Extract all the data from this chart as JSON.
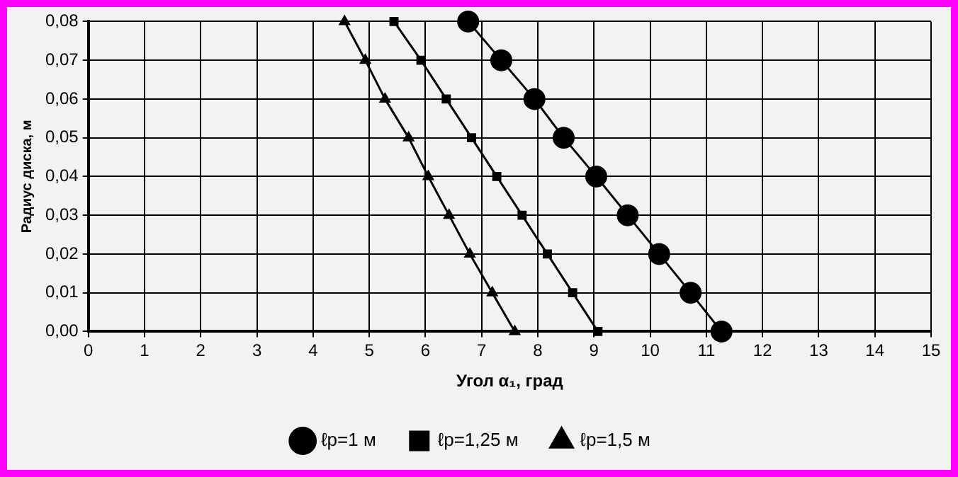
{
  "chart_data": {
    "type": "line",
    "xlabel": "Угол α₁, град",
    "ylabel": "Радиус диска, м",
    "xlim": [
      0,
      15
    ],
    "xticks": [
      0,
      1,
      2,
      3,
      4,
      5,
      6,
      7,
      8,
      9,
      10,
      11,
      12,
      13,
      14,
      15
    ],
    "ylim": [
      0,
      0.08
    ],
    "yticks": [
      {
        "value": 0,
        "label": "0,00"
      },
      {
        "value": 0.01,
        "label": "0,01"
      },
      {
        "value": 0.02,
        "label": "0,02"
      },
      {
        "value": 0.03,
        "label": "0,03"
      },
      {
        "value": 0.04,
        "label": "0,04"
      },
      {
        "value": 0.05,
        "label": "0,05"
      },
      {
        "value": 0.06,
        "label": "0,06"
      },
      {
        "value": 0.07,
        "label": "0,07"
      },
      {
        "value": 0.08,
        "label": "0,08"
      }
    ],
    "grid": true,
    "legend": "bottom",
    "line_style": "solid",
    "series": [
      {
        "name": "ℓp=1 м",
        "color": "#000000",
        "marker": "circle",
        "x": [
          6.76,
          7.35,
          7.94,
          8.46,
          9.04,
          9.6,
          10.16,
          10.72,
          11.27
        ],
        "values": [
          0.08,
          0.07,
          0.06,
          0.05,
          0.04,
          0.03,
          0.02,
          0.01,
          0
        ]
      },
      {
        "name": "ℓp=1,25 м",
        "color": "#000000",
        "marker": "square",
        "x": [
          5.44,
          5.92,
          6.37,
          6.82,
          7.27,
          7.72,
          8.17,
          8.62,
          9.07
        ],
        "values": [
          0.08,
          0.07,
          0.06,
          0.05,
          0.04,
          0.03,
          0.02,
          0.01,
          0
        ]
      },
      {
        "name": "ℓp=1,5 м",
        "color": "#000000",
        "marker": "triangle",
        "x": [
          4.56,
          4.93,
          5.28,
          5.7,
          6.05,
          6.42,
          6.79,
          7.19,
          7.59
        ],
        "values": [
          0.08,
          0.07,
          0.06,
          0.05,
          0.04,
          0.03,
          0.02,
          0.01,
          0
        ]
      }
    ]
  }
}
